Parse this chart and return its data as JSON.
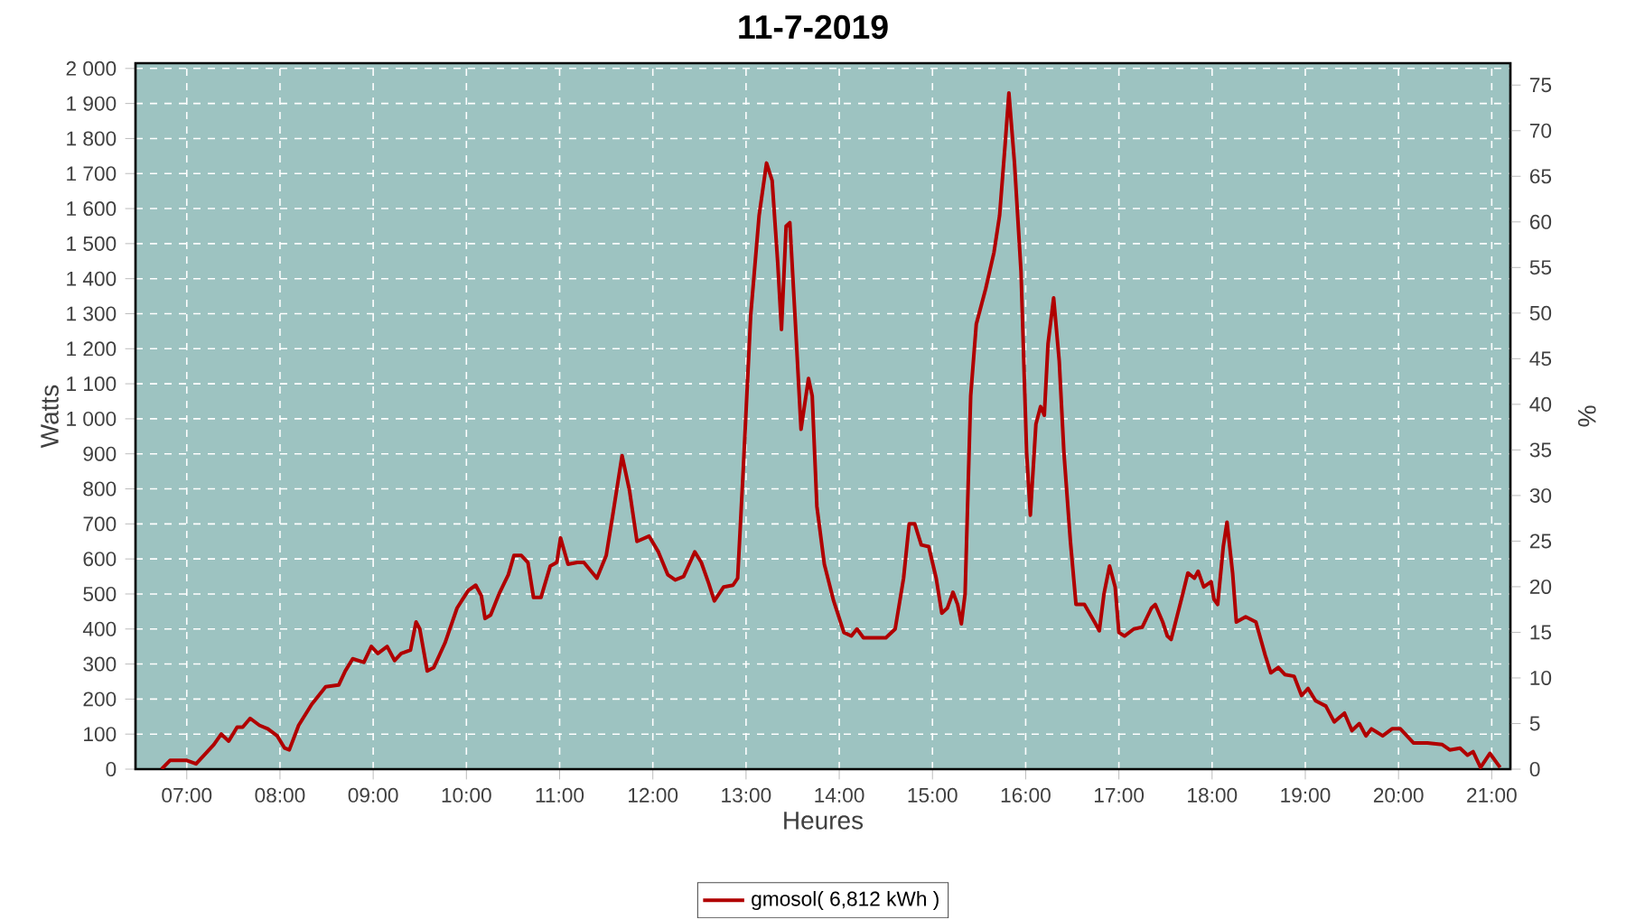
{
  "chart_data": {
    "type": "line",
    "title": "11-7-2019",
    "xlabel": "Heures",
    "ylabel": "Watts",
    "y2label": "%",
    "series": [
      {
        "name": "gmosol( 6,812 kWh )",
        "color": "#b00000",
        "x": [
          6.73,
          6.82,
          7.0,
          7.1,
          7.29,
          7.37,
          7.45,
          7.54,
          7.6,
          7.68,
          7.78,
          7.87,
          7.97,
          8.05,
          8.1,
          8.2,
          8.34,
          8.49,
          8.63,
          8.7,
          8.78,
          8.9,
          8.98,
          9.05,
          9.15,
          9.23,
          9.3,
          9.4,
          9.46,
          9.5,
          9.58,
          9.65,
          9.77,
          9.9,
          10.02,
          10.1,
          10.16,
          10.2,
          10.26,
          10.35,
          10.45,
          10.51,
          10.59,
          10.66,
          10.72,
          10.8,
          10.9,
          10.97,
          11.01,
          11.09,
          11.19,
          11.26,
          11.4,
          11.5,
          11.57,
          11.67,
          11.75,
          11.83,
          11.96,
          12.06,
          12.16,
          12.24,
          12.33,
          12.45,
          12.52,
          12.6,
          12.66,
          12.76,
          12.86,
          12.91,
          12.97,
          13.05,
          13.14,
          13.22,
          13.28,
          13.34,
          13.38,
          13.43,
          13.47,
          13.53,
          13.59,
          13.67,
          13.71,
          13.76,
          13.84,
          13.94,
          14.05,
          14.13,
          14.19,
          14.26,
          14.5,
          14.6,
          14.69,
          14.75,
          14.81,
          14.88,
          14.96,
          15.04,
          15.1,
          15.16,
          15.22,
          15.27,
          15.31,
          15.35,
          15.41,
          15.47,
          15.57,
          15.66,
          15.72,
          15.78,
          15.82,
          15.88,
          15.95,
          16.01,
          16.05,
          16.11,
          16.16,
          16.2,
          16.24,
          16.3,
          16.36,
          16.41,
          16.48,
          16.54,
          16.63,
          16.75,
          16.79,
          16.84,
          16.9,
          16.96,
          17.0,
          17.06,
          17.16,
          17.25,
          17.35,
          17.39,
          17.47,
          17.52,
          17.56,
          17.68,
          17.74,
          17.81,
          17.85,
          17.91,
          17.99,
          18.02,
          18.06,
          18.12,
          18.16,
          18.22,
          18.26,
          18.36,
          18.47,
          18.57,
          18.63,
          18.71,
          18.78,
          18.88,
          18.96,
          19.03,
          19.11,
          19.22,
          19.31,
          19.42,
          19.5,
          19.58,
          19.65,
          19.71,
          19.83,
          19.93,
          20.02,
          20.16,
          20.31,
          20.47,
          20.55,
          20.66,
          20.74,
          20.8,
          20.88,
          20.98,
          21.09
        ],
        "values": [
          0,
          25,
          25,
          15,
          70,
          100,
          80,
          120,
          120,
          145,
          125,
          115,
          95,
          60,
          55,
          125,
          185,
          235,
          240,
          280,
          315,
          305,
          350,
          330,
          350,
          310,
          330,
          340,
          420,
          400,
          280,
          290,
          360,
          460,
          510,
          525,
          495,
          430,
          440,
          500,
          555,
          610,
          610,
          590,
          490,
          490,
          580,
          590,
          660,
          585,
          590,
          590,
          545,
          610,
          725,
          895,
          795,
          650,
          665,
          620,
          555,
          540,
          550,
          620,
          590,
          530,
          480,
          520,
          525,
          545,
          855,
          1295,
          1580,
          1730,
          1680,
          1445,
          1255,
          1550,
          1560,
          1270,
          970,
          1115,
          1065,
          750,
          585,
          480,
          390,
          380,
          400,
          375,
          375,
          400,
          545,
          700,
          700,
          640,
          635,
          545,
          445,
          460,
          505,
          470,
          415,
          500,
          1065,
          1270,
          1370,
          1475,
          1580,
          1785,
          1930,
          1730,
          1420,
          905,
          725,
          985,
          1035,
          1010,
          1215,
          1345,
          1165,
          905,
          650,
          470,
          470,
          415,
          395,
          500,
          580,
          520,
          390,
          380,
          400,
          405,
          460,
          470,
          420,
          380,
          370,
          495,
          560,
          545,
          565,
          520,
          535,
          485,
          470,
          635,
          705,
          560,
          420,
          435,
          420,
          325,
          275,
          290,
          270,
          265,
          210,
          230,
          195,
          180,
          135,
          160,
          110,
          130,
          95,
          115,
          95,
          115,
          115,
          75,
          75,
          70,
          55,
          60,
          40,
          50,
          5,
          45,
          5
        ]
      }
    ],
    "xlim": [
      6.45,
      21.2
    ],
    "xticks": [
      {
        "value": 7,
        "label": "07:00"
      },
      {
        "value": 8,
        "label": "08:00"
      },
      {
        "value": 9,
        "label": "09:00"
      },
      {
        "value": 10,
        "label": "10:00"
      },
      {
        "value": 11,
        "label": "11:00"
      },
      {
        "value": 12,
        "label": "12:00"
      },
      {
        "value": 13,
        "label": "13:00"
      },
      {
        "value": 14,
        "label": "14:00"
      },
      {
        "value": 15,
        "label": "15:00"
      },
      {
        "value": 16,
        "label": "16:00"
      },
      {
        "value": 17,
        "label": "17:00"
      },
      {
        "value": 18,
        "label": "18:00"
      },
      {
        "value": 19,
        "label": "19:00"
      },
      {
        "value": 20,
        "label": "20:00"
      },
      {
        "value": 21,
        "label": "21:00"
      }
    ],
    "ylim": [
      0,
      2015
    ],
    "yticks": [
      0,
      100,
      200,
      300,
      400,
      500,
      600,
      700,
      800,
      900,
      {
        "value": 1000,
        "label": "1 000"
      },
      {
        "value": 1100,
        "label": "1 100"
      },
      {
        "value": 1200,
        "label": "1 200"
      },
      {
        "value": 1300,
        "label": "1 300"
      },
      {
        "value": 1400,
        "label": "1 400"
      },
      {
        "value": 1500,
        "label": "1 500"
      },
      {
        "value": 1600,
        "label": "1 600"
      },
      {
        "value": 1700,
        "label": "1 700"
      },
      {
        "value": 1800,
        "label": "1 800"
      },
      {
        "value": 1900,
        "label": "1 900"
      },
      {
        "value": 2000,
        "label": "2 000"
      }
    ],
    "y2lim": [
      0,
      77.4
    ],
    "y2ticks": [
      0,
      5,
      10,
      15,
      20,
      25,
      30,
      35,
      40,
      45,
      50,
      55,
      60,
      65,
      70,
      75
    ],
    "grid": true,
    "legend": "bottom",
    "marker": "none",
    "line_style": "solid"
  }
}
